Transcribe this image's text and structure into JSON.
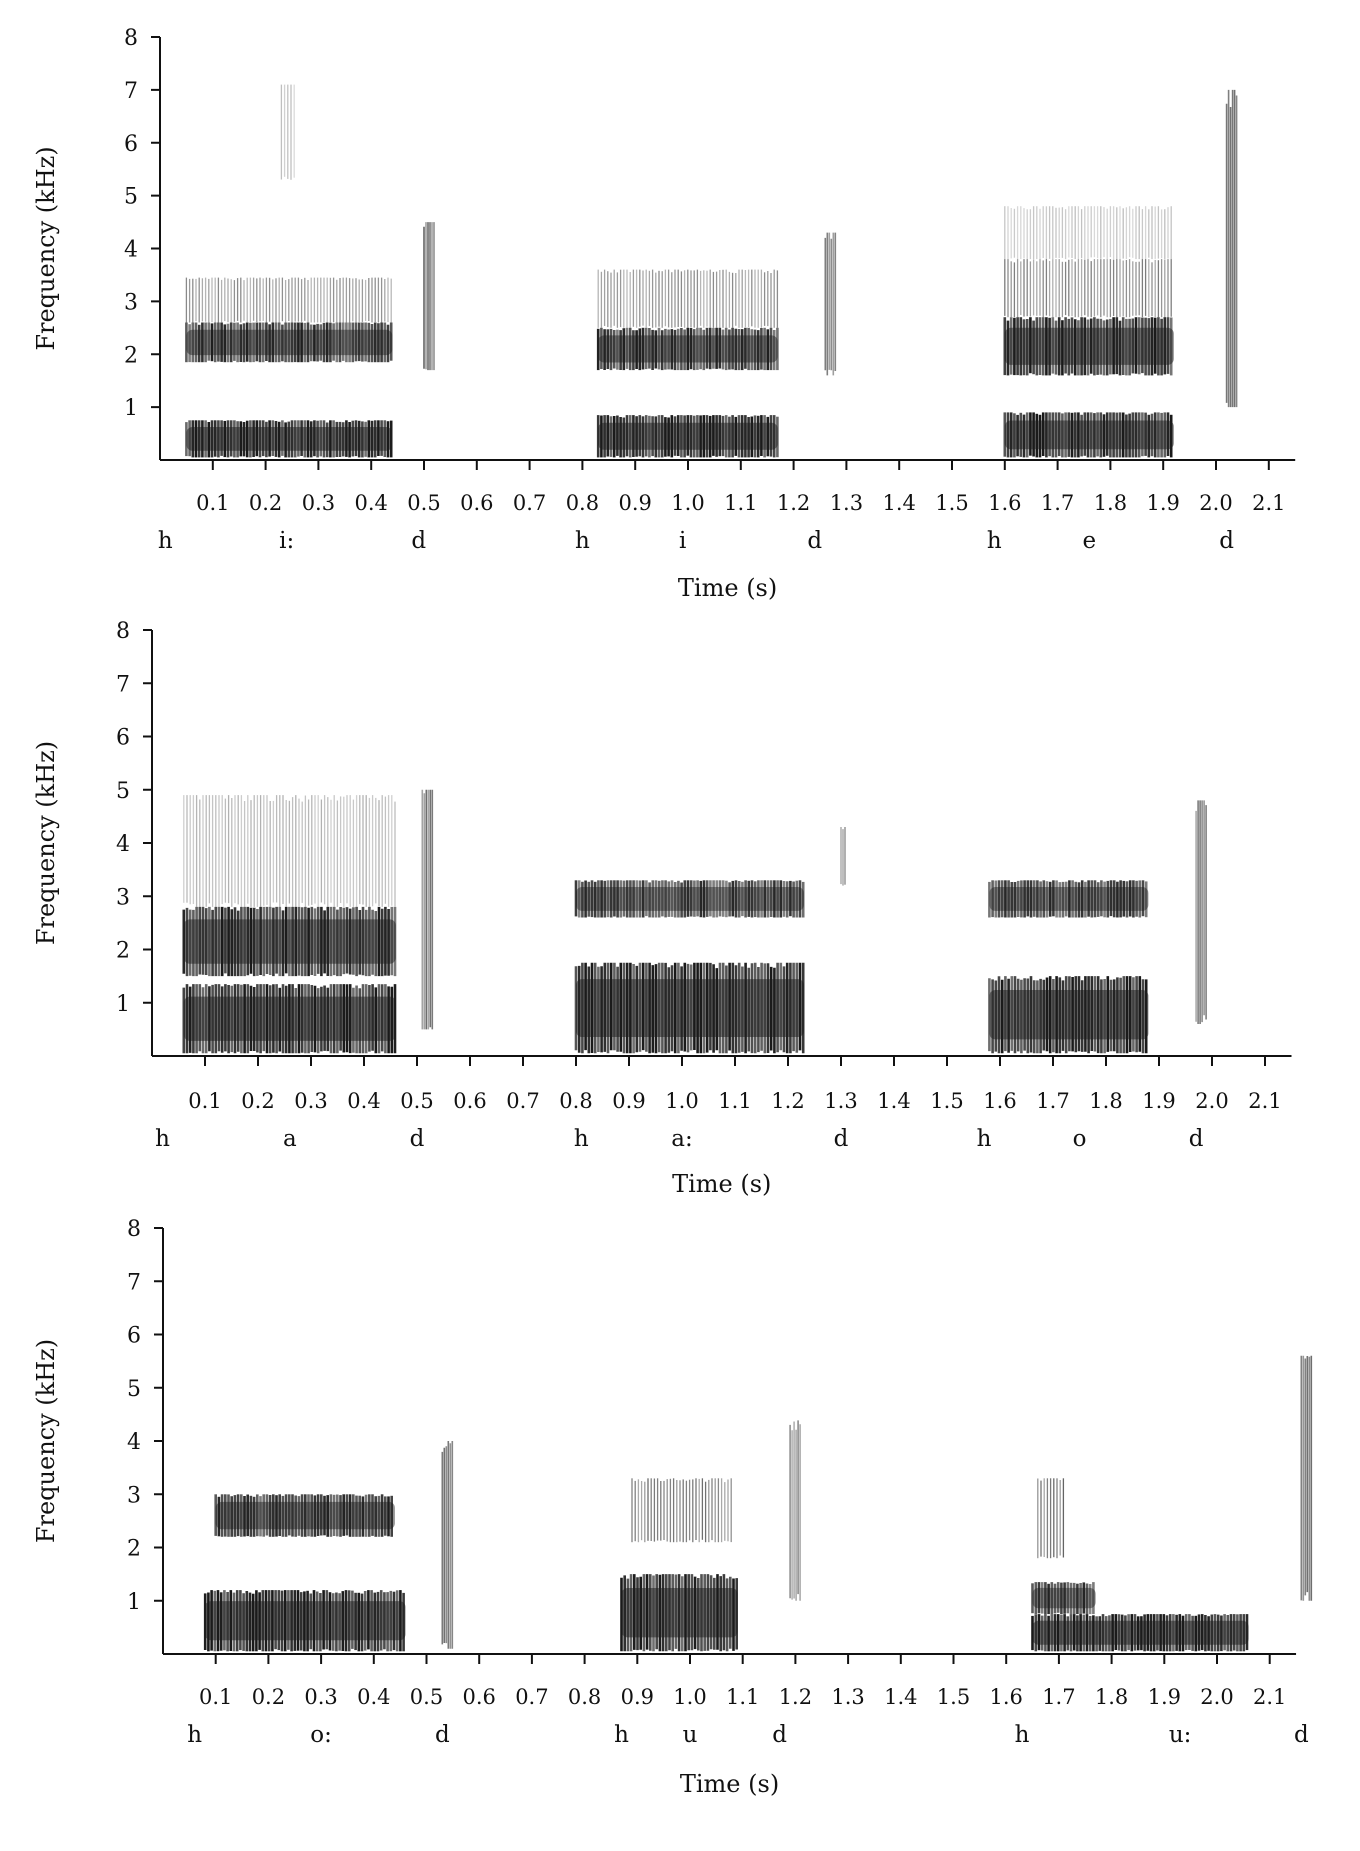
{
  "chart_data": [
    {
      "type": "spectrogram",
      "xlabel": "Time (s)",
      "ylabel": "Frequency (kHz)",
      "xlim": [
        0,
        2.15
      ],
      "ylim": [
        0,
        8
      ],
      "yticks": [
        1,
        2,
        3,
        4,
        5,
        6,
        7,
        8
      ],
      "xticks": [
        0.1,
        0.2,
        0.3,
        0.4,
        0.5,
        0.6,
        0.7,
        0.8,
        0.9,
        1.0,
        1.1,
        1.2,
        1.3,
        1.4,
        1.5,
        1.6,
        1.7,
        1.8,
        1.9,
        2.0,
        2.1
      ],
      "xtick_labels": [
        "0.1",
        "0.2",
        "0.3",
        "0.4",
        "0.5",
        "0.6",
        "0.7",
        "0.8",
        "0.9",
        "1.0",
        "1.1",
        "1.2",
        "1.3",
        "1.4",
        "1.5",
        "1.6",
        "1.7",
        "1.8",
        "1.9",
        "2.0",
        "2.1"
      ],
      "segments": [
        {
          "label": "h",
          "t": 0.01
        },
        {
          "label": "i:",
          "t": 0.24
        },
        {
          "label": "d",
          "t": 0.49
        },
        {
          "label": "h",
          "t": 0.8
        },
        {
          "label": "i",
          "t": 0.99
        },
        {
          "label": "d",
          "t": 1.24
        },
        {
          "label": "h",
          "t": 1.58
        },
        {
          "label": "e",
          "t": 1.76
        },
        {
          "label": "d",
          "t": 2.02
        }
      ],
      "energy_regions": [
        {
          "t0": 0.05,
          "t1": 0.44,
          "f0": 0.05,
          "f1": 0.75,
          "density": 0.95
        },
        {
          "t0": 0.05,
          "t1": 0.44,
          "f0": 1.85,
          "f1": 2.6,
          "density": 0.85
        },
        {
          "t0": 0.05,
          "t1": 0.44,
          "f0": 2.6,
          "f1": 3.45,
          "density": 0.45
        },
        {
          "t0": 0.5,
          "t1": 0.52,
          "f0": 1.7,
          "f1": 4.5,
          "density": 0.6
        },
        {
          "t0": 0.23,
          "t1": 0.26,
          "f0": 5.3,
          "f1": 7.1,
          "density": 0.25
        },
        {
          "t0": 0.83,
          "t1": 1.17,
          "f0": 0.05,
          "f1": 0.85,
          "density": 0.95
        },
        {
          "t0": 0.83,
          "t1": 1.17,
          "f0": 1.7,
          "f1": 2.5,
          "density": 0.85
        },
        {
          "t0": 0.83,
          "t1": 1.17,
          "f0": 2.5,
          "f1": 3.6,
          "density": 0.45
        },
        {
          "t0": 1.26,
          "t1": 1.28,
          "f0": 1.6,
          "f1": 4.3,
          "density": 0.55
        },
        {
          "t0": 1.6,
          "t1": 1.92,
          "f0": 0.05,
          "f1": 0.9,
          "density": 0.95
        },
        {
          "t0": 1.6,
          "t1": 1.92,
          "f0": 1.6,
          "f1": 2.7,
          "density": 0.9
        },
        {
          "t0": 1.6,
          "t1": 1.92,
          "f0": 2.7,
          "f1": 3.8,
          "density": 0.5
        },
        {
          "t0": 1.6,
          "t1": 1.92,
          "f0": 3.8,
          "f1": 4.8,
          "density": 0.25
        },
        {
          "t0": 2.02,
          "t1": 2.04,
          "f0": 1.0,
          "f1": 7.0,
          "density": 0.6
        }
      ]
    },
    {
      "type": "spectrogram",
      "xlabel": "Time (s)",
      "ylabel": "Frequency (kHz)",
      "xlim": [
        0,
        2.15
      ],
      "ylim": [
        0,
        8
      ],
      "yticks": [
        1,
        2,
        3,
        4,
        5,
        6,
        7,
        8
      ],
      "xticks": [
        0.1,
        0.2,
        0.3,
        0.4,
        0.5,
        0.6,
        0.7,
        0.8,
        0.9,
        1.0,
        1.1,
        1.2,
        1.3,
        1.4,
        1.5,
        1.6,
        1.7,
        1.8,
        1.9,
        2.0,
        2.1
      ],
      "xtick_labels": [
        "0.1",
        "0.2",
        "0.3",
        "0.4",
        "0.5",
        "0.6",
        "0.7",
        "0.8",
        "0.9",
        "1.0",
        "1.1",
        "1.2",
        "1.3",
        "1.4",
        "1.5",
        "1.6",
        "1.7",
        "1.8",
        "1.9",
        "2.0",
        "2.1"
      ],
      "segments": [
        {
          "label": "h",
          "t": 0.02
        },
        {
          "label": "a",
          "t": 0.26
        },
        {
          "label": "d",
          "t": 0.5
        },
        {
          "label": "h",
          "t": 0.81
        },
        {
          "label": "a:",
          "t": 1.0
        },
        {
          "label": "d",
          "t": 1.3
        },
        {
          "label": "h",
          "t": 1.57
        },
        {
          "label": "o",
          "t": 1.75
        },
        {
          "label": "d",
          "t": 1.97
        }
      ],
      "energy_regions": [
        {
          "t0": 0.06,
          "t1": 0.46,
          "f0": 0.05,
          "f1": 1.35,
          "density": 0.95
        },
        {
          "t0": 0.06,
          "t1": 0.46,
          "f0": 1.5,
          "f1": 2.8,
          "density": 0.9
        },
        {
          "t0": 0.06,
          "t1": 0.46,
          "f0": 2.8,
          "f1": 4.9,
          "density": 0.3
        },
        {
          "t0": 0.51,
          "t1": 0.53,
          "f0": 0.5,
          "f1": 5.0,
          "density": 0.55
        },
        {
          "t0": 0.8,
          "t1": 1.23,
          "f0": 0.05,
          "f1": 1.75,
          "density": 0.95
        },
        {
          "t0": 0.8,
          "t1": 1.23,
          "f0": 2.6,
          "f1": 3.3,
          "density": 0.8
        },
        {
          "t0": 1.3,
          "t1": 1.31,
          "f0": 3.2,
          "f1": 4.3,
          "density": 0.4
        },
        {
          "t0": 1.58,
          "t1": 1.88,
          "f0": 0.05,
          "f1": 1.5,
          "density": 0.95
        },
        {
          "t0": 1.58,
          "t1": 1.88,
          "f0": 2.6,
          "f1": 3.3,
          "density": 0.8
        },
        {
          "t0": 1.97,
          "t1": 1.99,
          "f0": 0.6,
          "f1": 4.8,
          "density": 0.55
        }
      ]
    },
    {
      "type": "spectrogram",
      "xlabel": "Time (s)",
      "ylabel": "Frequency (kHz)",
      "xlim": [
        0,
        2.15
      ],
      "ylim": [
        0,
        8
      ],
      "yticks": [
        1,
        2,
        3,
        4,
        5,
        6,
        7,
        8
      ],
      "xticks": [
        0.1,
        0.2,
        0.3,
        0.4,
        0.5,
        0.6,
        0.7,
        0.8,
        0.9,
        1.0,
        1.1,
        1.2,
        1.3,
        1.4,
        1.5,
        1.6,
        1.7,
        1.8,
        1.9,
        2.0,
        2.1
      ],
      "xtick_labels": [
        "0.1",
        "0.2",
        "0.3",
        "0.4",
        "0.5",
        "0.6",
        "0.7",
        "0.8",
        "0.9",
        "1.0",
        "1.1",
        "1.2",
        "1.3",
        "1.4",
        "1.5",
        "1.6",
        "1.7",
        "1.8",
        "1.9",
        "2.0",
        "2.1"
      ],
      "segments": [
        {
          "label": "h",
          "t": 0.06
        },
        {
          "label": "o:",
          "t": 0.3
        },
        {
          "label": "d",
          "t": 0.53
        },
        {
          "label": "h",
          "t": 0.87
        },
        {
          "label": "u",
          "t": 1.0
        },
        {
          "label": "d",
          "t": 1.17
        },
        {
          "label": "h",
          "t": 1.63
        },
        {
          "label": "u:",
          "t": 1.93
        },
        {
          "label": "d",
          "t": 2.16
        }
      ],
      "energy_regions": [
        {
          "t0": 0.08,
          "t1": 0.46,
          "f0": 0.05,
          "f1": 1.2,
          "density": 0.95
        },
        {
          "t0": 0.1,
          "t1": 0.44,
          "f0": 2.2,
          "f1": 3.0,
          "density": 0.85
        },
        {
          "t0": 0.53,
          "t1": 0.55,
          "f0": 0.1,
          "f1": 4.0,
          "density": 0.55
        },
        {
          "t0": 0.87,
          "t1": 1.09,
          "f0": 0.05,
          "f1": 1.5,
          "density": 0.95
        },
        {
          "t0": 0.89,
          "t1": 1.08,
          "f0": 2.1,
          "f1": 3.3,
          "density": 0.55
        },
        {
          "t0": 1.19,
          "t1": 1.21,
          "f0": 1.0,
          "f1": 4.4,
          "density": 0.5
        },
        {
          "t0": 1.65,
          "t1": 2.06,
          "f0": 0.05,
          "f1": 0.75,
          "density": 0.95
        },
        {
          "t0": 1.65,
          "t1": 1.77,
          "f0": 0.75,
          "f1": 1.35,
          "density": 0.8
        },
        {
          "t0": 1.66,
          "t1": 1.71,
          "f0": 1.8,
          "f1": 3.3,
          "density": 0.6
        },
        {
          "t0": 2.16,
          "t1": 2.18,
          "f0": 1.0,
          "f1": 5.6,
          "density": 0.6
        }
      ]
    }
  ]
}
